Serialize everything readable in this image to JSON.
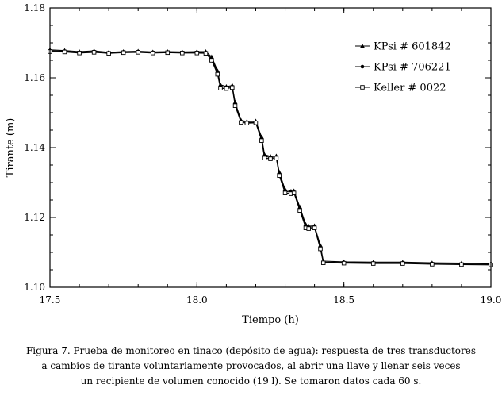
{
  "chart_data": {
    "type": "line",
    "title": "",
    "xlabel": "Tiempo (h)",
    "ylabel": "Tirante (m)",
    "xlim": [
      17.5,
      19.0
    ],
    "ylim": [
      1.1,
      1.18
    ],
    "xticks": [
      "17.5",
      "18.0",
      "18.5",
      "19.0"
    ],
    "yticks": [
      "1.10",
      "1.12",
      "1.14",
      "1.16",
      "1.18"
    ],
    "grid": false,
    "legend_position": "top-right",
    "x": [
      17.5,
      17.55,
      17.6,
      17.65,
      17.7,
      17.75,
      17.8,
      17.85,
      17.9,
      17.95,
      18.0,
      18.03,
      18.05,
      18.07,
      18.08,
      18.1,
      18.12,
      18.13,
      18.15,
      18.17,
      18.2,
      18.22,
      18.23,
      18.25,
      18.27,
      18.28,
      18.3,
      18.32,
      18.33,
      18.35,
      18.37,
      18.38,
      18.4,
      18.42,
      18.43,
      18.5,
      18.6,
      18.7,
      18.8,
      18.9,
      19.0
    ],
    "series": [
      {
        "name": "KPsi # 601842",
        "marker": "triangle",
        "values": [
          1.168,
          1.1678,
          1.1675,
          1.1677,
          1.1673,
          1.1675,
          1.1676,
          1.1674,
          1.1675,
          1.1674,
          1.1675,
          1.1675,
          1.166,
          1.162,
          1.158,
          1.1575,
          1.1578,
          1.153,
          1.1478,
          1.1475,
          1.1476,
          1.143,
          1.138,
          1.1375,
          1.1376,
          1.133,
          1.128,
          1.1275,
          1.1276,
          1.123,
          1.118,
          1.1175,
          1.1176,
          1.112,
          1.1075,
          1.1073,
          1.1072,
          1.1072,
          1.107,
          1.1069,
          1.1068
        ]
      },
      {
        "name": "KPsi # 706221",
        "marker": "circle",
        "values": [
          1.1677,
          1.1676,
          1.1673,
          1.1675,
          1.1672,
          1.1674,
          1.1675,
          1.1673,
          1.1674,
          1.1673,
          1.1673,
          1.1672,
          1.1655,
          1.1615,
          1.1575,
          1.1572,
          1.1575,
          1.1525,
          1.1475,
          1.1472,
          1.1473,
          1.1425,
          1.1375,
          1.1372,
          1.1373,
          1.1325,
          1.1275,
          1.1272,
          1.1273,
          1.1225,
          1.1175,
          1.1172,
          1.1173,
          1.1115,
          1.1072,
          1.1071,
          1.107,
          1.107,
          1.1068,
          1.1067,
          1.1066
        ]
      },
      {
        "name": "Keller # 0022",
        "marker": "square",
        "values": [
          1.1675,
          1.1674,
          1.1671,
          1.1673,
          1.167,
          1.1672,
          1.1673,
          1.1671,
          1.1672,
          1.1671,
          1.1671,
          1.167,
          1.165,
          1.161,
          1.157,
          1.1569,
          1.1572,
          1.152,
          1.1472,
          1.147,
          1.1471,
          1.142,
          1.137,
          1.1368,
          1.137,
          1.132,
          1.127,
          1.1268,
          1.127,
          1.122,
          1.117,
          1.1168,
          1.117,
          1.111,
          1.107,
          1.1069,
          1.1068,
          1.1068,
          1.1066,
          1.1065,
          1.1064
        ]
      }
    ]
  },
  "caption": {
    "line1": "Figura 7. Prueba de monitoreo en tinaco (depósito de agua): respuesta de tres transductores",
    "line2": "a cambios de tirante voluntariamente provocados, al abrir una llave y llenar seis veces",
    "line3": "un recipiente de volumen conocido (19 l). Se tomaron datos cada 60 s."
  }
}
